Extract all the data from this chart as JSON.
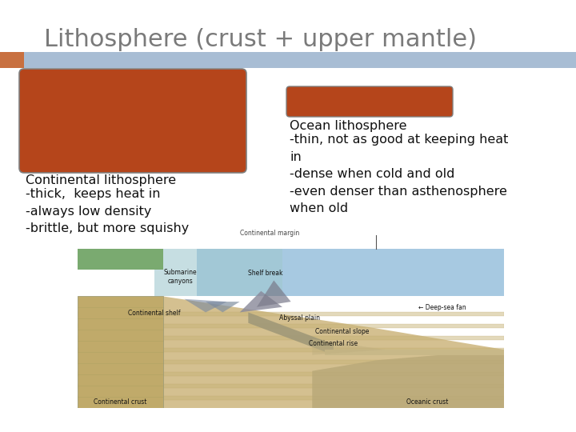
{
  "title": "Lithosphere (crust + upper mantle)",
  "title_color": "#7a7a7a",
  "title_fontsize": 22,
  "bg_color": "#ffffff",
  "header_bar_color": "#a8bdd4",
  "header_left_color": "#c87040",
  "big_rect_color": "#b5451b",
  "big_rect_border_color": "#808080",
  "small_rect_color": "#b5451b",
  "small_rect_border_color": "#808080",
  "left_text_title": "Continental lithosphere",
  "left_text_body": "-thick,  keeps heat in\n-always low density\n-brittle, but more squishy",
  "right_text_title": "Ocean lithosphere",
  "right_text_body": "-thin, not as good at keeping heat\nin\n-dense when cold and old\n-even denser than asthenosphere\nwhen old",
  "text_color": "#111111",
  "text_fontsize": 11.5
}
